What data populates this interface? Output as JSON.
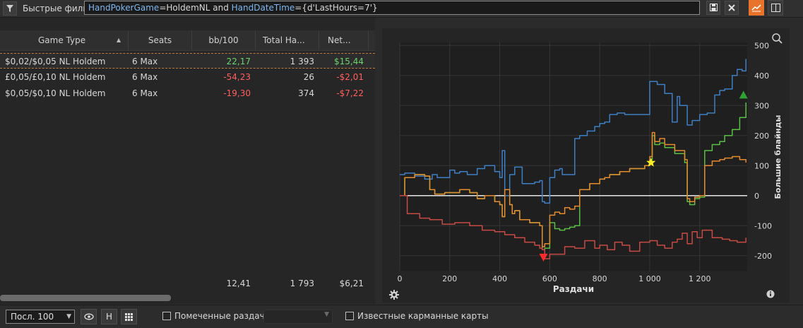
{
  "filter_bar": {
    "quick_filters_label": "Быстрые фильт",
    "query": {
      "field1": "HandPokerGame",
      "op1": "=HoldemNL and ",
      "field2": "HandDateTime",
      "op2": "={d'LastHours=7'}"
    },
    "save_icon": "save-icon",
    "clear_icon": "close-icon",
    "chart_toggle_icon": "line-chart-icon",
    "layout_toggle_icon": "split-layout-icon",
    "accent_color": "#e8732a"
  },
  "table": {
    "columns": [
      "Game Type",
      "Seats",
      "bb/100",
      "Total Ha...",
      "Net..."
    ],
    "sort_indicator": "▲",
    "rows": [
      {
        "game_type": "$0,02/$0,05 NL Holdem",
        "seats": "6 Max",
        "bb100": "22,17",
        "total_hands": "1 393",
        "net": "$15,44",
        "positive": true
      },
      {
        "game_type": "£0,05/£0,10 NL Holdem",
        "seats": "6 Max",
        "bb100": "-54,23",
        "total_hands": "26",
        "net": "-$2,01",
        "positive": false
      },
      {
        "game_type": "$0,05/$0,10 NL Holdem",
        "seats": "6 Max",
        "bb100": "-19,30",
        "total_hands": "374",
        "net": "-$7,22",
        "positive": false
      }
    ],
    "totals": {
      "bb100": "12,41",
      "total_hands": "1 793",
      "net": "$6,21"
    }
  },
  "chart_data": {
    "type": "line",
    "xlabel": "Раздачи",
    "ylabel": "Большие блайнды",
    "xlim": [
      0,
      1390
    ],
    "ylim": [
      -250,
      510
    ],
    "x_ticks": [
      "0",
      "200",
      "400",
      "600",
      "800",
      "1 000",
      "1 200"
    ],
    "y_ticks": [
      "500",
      "400",
      "300",
      "200",
      "100",
      "0",
      "-100",
      "-200"
    ],
    "grid": true,
    "colors": {
      "blue": "#3f7fc4",
      "green": "#59c043",
      "orange": "#e68a2e",
      "red": "#c84a45",
      "zero": "#e6e6e6"
    },
    "series": [
      {
        "color": "blue",
        "x": [
          0,
          20,
          60,
          100,
          130,
          150,
          200,
          220,
          240,
          270,
          310,
          340,
          380,
          400,
          410,
          420,
          440,
          460,
          490,
          540,
          560,
          570,
          580,
          600,
          620,
          640,
          650,
          700,
          720,
          730,
          750,
          780,
          800,
          820,
          840,
          870,
          900,
          960,
          1000,
          1020,
          1030,
          1060,
          1090,
          1110,
          1120,
          1150,
          1170,
          1200,
          1230,
          1260,
          1280,
          1300,
          1330,
          1350,
          1370,
          1385
        ],
        "y": [
          70,
          75,
          65,
          55,
          70,
          60,
          85,
          75,
          80,
          70,
          90,
          100,
          80,
          60,
          150,
          0,
          70,
          95,
          40,
          45,
          50,
          -20,
          -25,
          60,
          85,
          90,
          70,
          190,
          200,
          200,
          215,
          230,
          240,
          245,
          270,
          275,
          270,
          270,
          380,
          380,
          370,
          340,
          245,
          330,
          300,
          235,
          250,
          270,
          275,
          335,
          350,
          355,
          400,
          420,
          415,
          455
        ]
      },
      {
        "color": "green",
        "x": [
          0,
          20,
          60,
          100,
          120,
          140,
          180,
          200,
          240,
          280,
          310,
          340,
          380,
          400,
          410,
          420,
          440,
          450,
          460,
          480,
          520,
          560,
          570,
          580,
          600,
          620,
          640,
          660,
          680,
          700,
          720,
          760,
          800,
          820,
          840,
          880,
          920,
          980,
          1000,
          1010,
          1020,
          1040,
          1060,
          1080,
          1100,
          1140,
          1150,
          1160,
          1180,
          1200,
          1220,
          1250,
          1280,
          1300,
          1330,
          1360,
          1385
        ],
        "y": [
          0,
          60,
          70,
          65,
          20,
          5,
          10,
          10,
          20,
          10,
          -10,
          0,
          -20,
          -30,
          -70,
          20,
          -30,
          -60,
          -50,
          -80,
          -90,
          -100,
          -180,
          -175,
          -90,
          -110,
          -115,
          -110,
          -105,
          -100,
          20,
          40,
          55,
          60,
          70,
          80,
          90,
          100,
          120,
          200,
          170,
          175,
          160,
          160,
          140,
          110,
          -20,
          -30,
          -10,
          -5,
          150,
          170,
          180,
          200,
          220,
          260,
          310
        ]
      },
      {
        "color": "orange",
        "x": [
          0,
          20,
          60,
          100,
          120,
          140,
          180,
          200,
          240,
          280,
          310,
          340,
          380,
          400,
          410,
          420,
          440,
          450,
          460,
          480,
          520,
          560,
          570,
          580,
          600,
          620,
          640,
          660,
          680,
          700,
          720,
          760,
          800,
          820,
          840,
          880,
          920,
          980,
          1000,
          1010,
          1020,
          1040,
          1060,
          1080,
          1100,
          1140,
          1150,
          1160,
          1180,
          1200,
          1220,
          1250,
          1280,
          1300,
          1330,
          1360,
          1385
        ],
        "y": [
          0,
          60,
          70,
          65,
          20,
          5,
          10,
          10,
          20,
          10,
          -10,
          0,
          -20,
          -30,
          -70,
          20,
          -30,
          -60,
          -50,
          -80,
          -90,
          -100,
          -170,
          -160,
          -65,
          -55,
          -60,
          -40,
          -45,
          -35,
          20,
          40,
          55,
          60,
          70,
          80,
          90,
          100,
          130,
          210,
          180,
          190,
          170,
          170,
          150,
          120,
          -10,
          -20,
          -5,
          0,
          100,
          115,
          120,
          125,
          130,
          120,
          110
        ]
      },
      {
        "color": "red",
        "x": [
          0,
          30,
          80,
          120,
          170,
          220,
          280,
          330,
          380,
          420,
          460,
          500,
          540,
          560,
          570,
          580,
          600,
          620,
          660,
          700,
          740,
          780,
          800,
          830,
          860,
          890,
          920,
          960,
          1000,
          1030,
          1060,
          1090,
          1110,
          1130,
          1150,
          1170,
          1190,
          1210,
          1250,
          1290,
          1320,
          1350,
          1385
        ],
        "y": [
          0,
          -60,
          -75,
          -80,
          -95,
          -90,
          -100,
          -115,
          -120,
          -130,
          -140,
          -155,
          -165,
          -175,
          -180,
          -210,
          -195,
          -195,
          -170,
          -175,
          -150,
          -175,
          -165,
          -180,
          -155,
          -165,
          -185,
          -155,
          -150,
          -165,
          -175,
          -155,
          -145,
          -125,
          -160,
          -120,
          -140,
          -115,
          -140,
          -145,
          -150,
          -155,
          -140
        ]
      }
    ],
    "markers": [
      {
        "shape": "triangle-down",
        "color": "#ff2a2a",
        "x": 575,
        "y": -205
      },
      {
        "shape": "star",
        "color": "#ffee22",
        "x": 1005,
        "y": 110
      },
      {
        "shape": "triangle-up",
        "color": "#2fa330",
        "x": 1375,
        "y": 335
      }
    ]
  },
  "chart_controls": {
    "zoom_icon": "magnifier-icon",
    "settings_icon": "gear-icon",
    "info_icon": "info-icon"
  },
  "bottom_bar": {
    "range_value": "Посл. 100",
    "eye_icon": "eye-icon",
    "h_button": "H",
    "grid_icon": "grid-icon",
    "marked_hands_label": "Помеченные раздачи",
    "known_cards_label": "Известные карманные карты"
  }
}
